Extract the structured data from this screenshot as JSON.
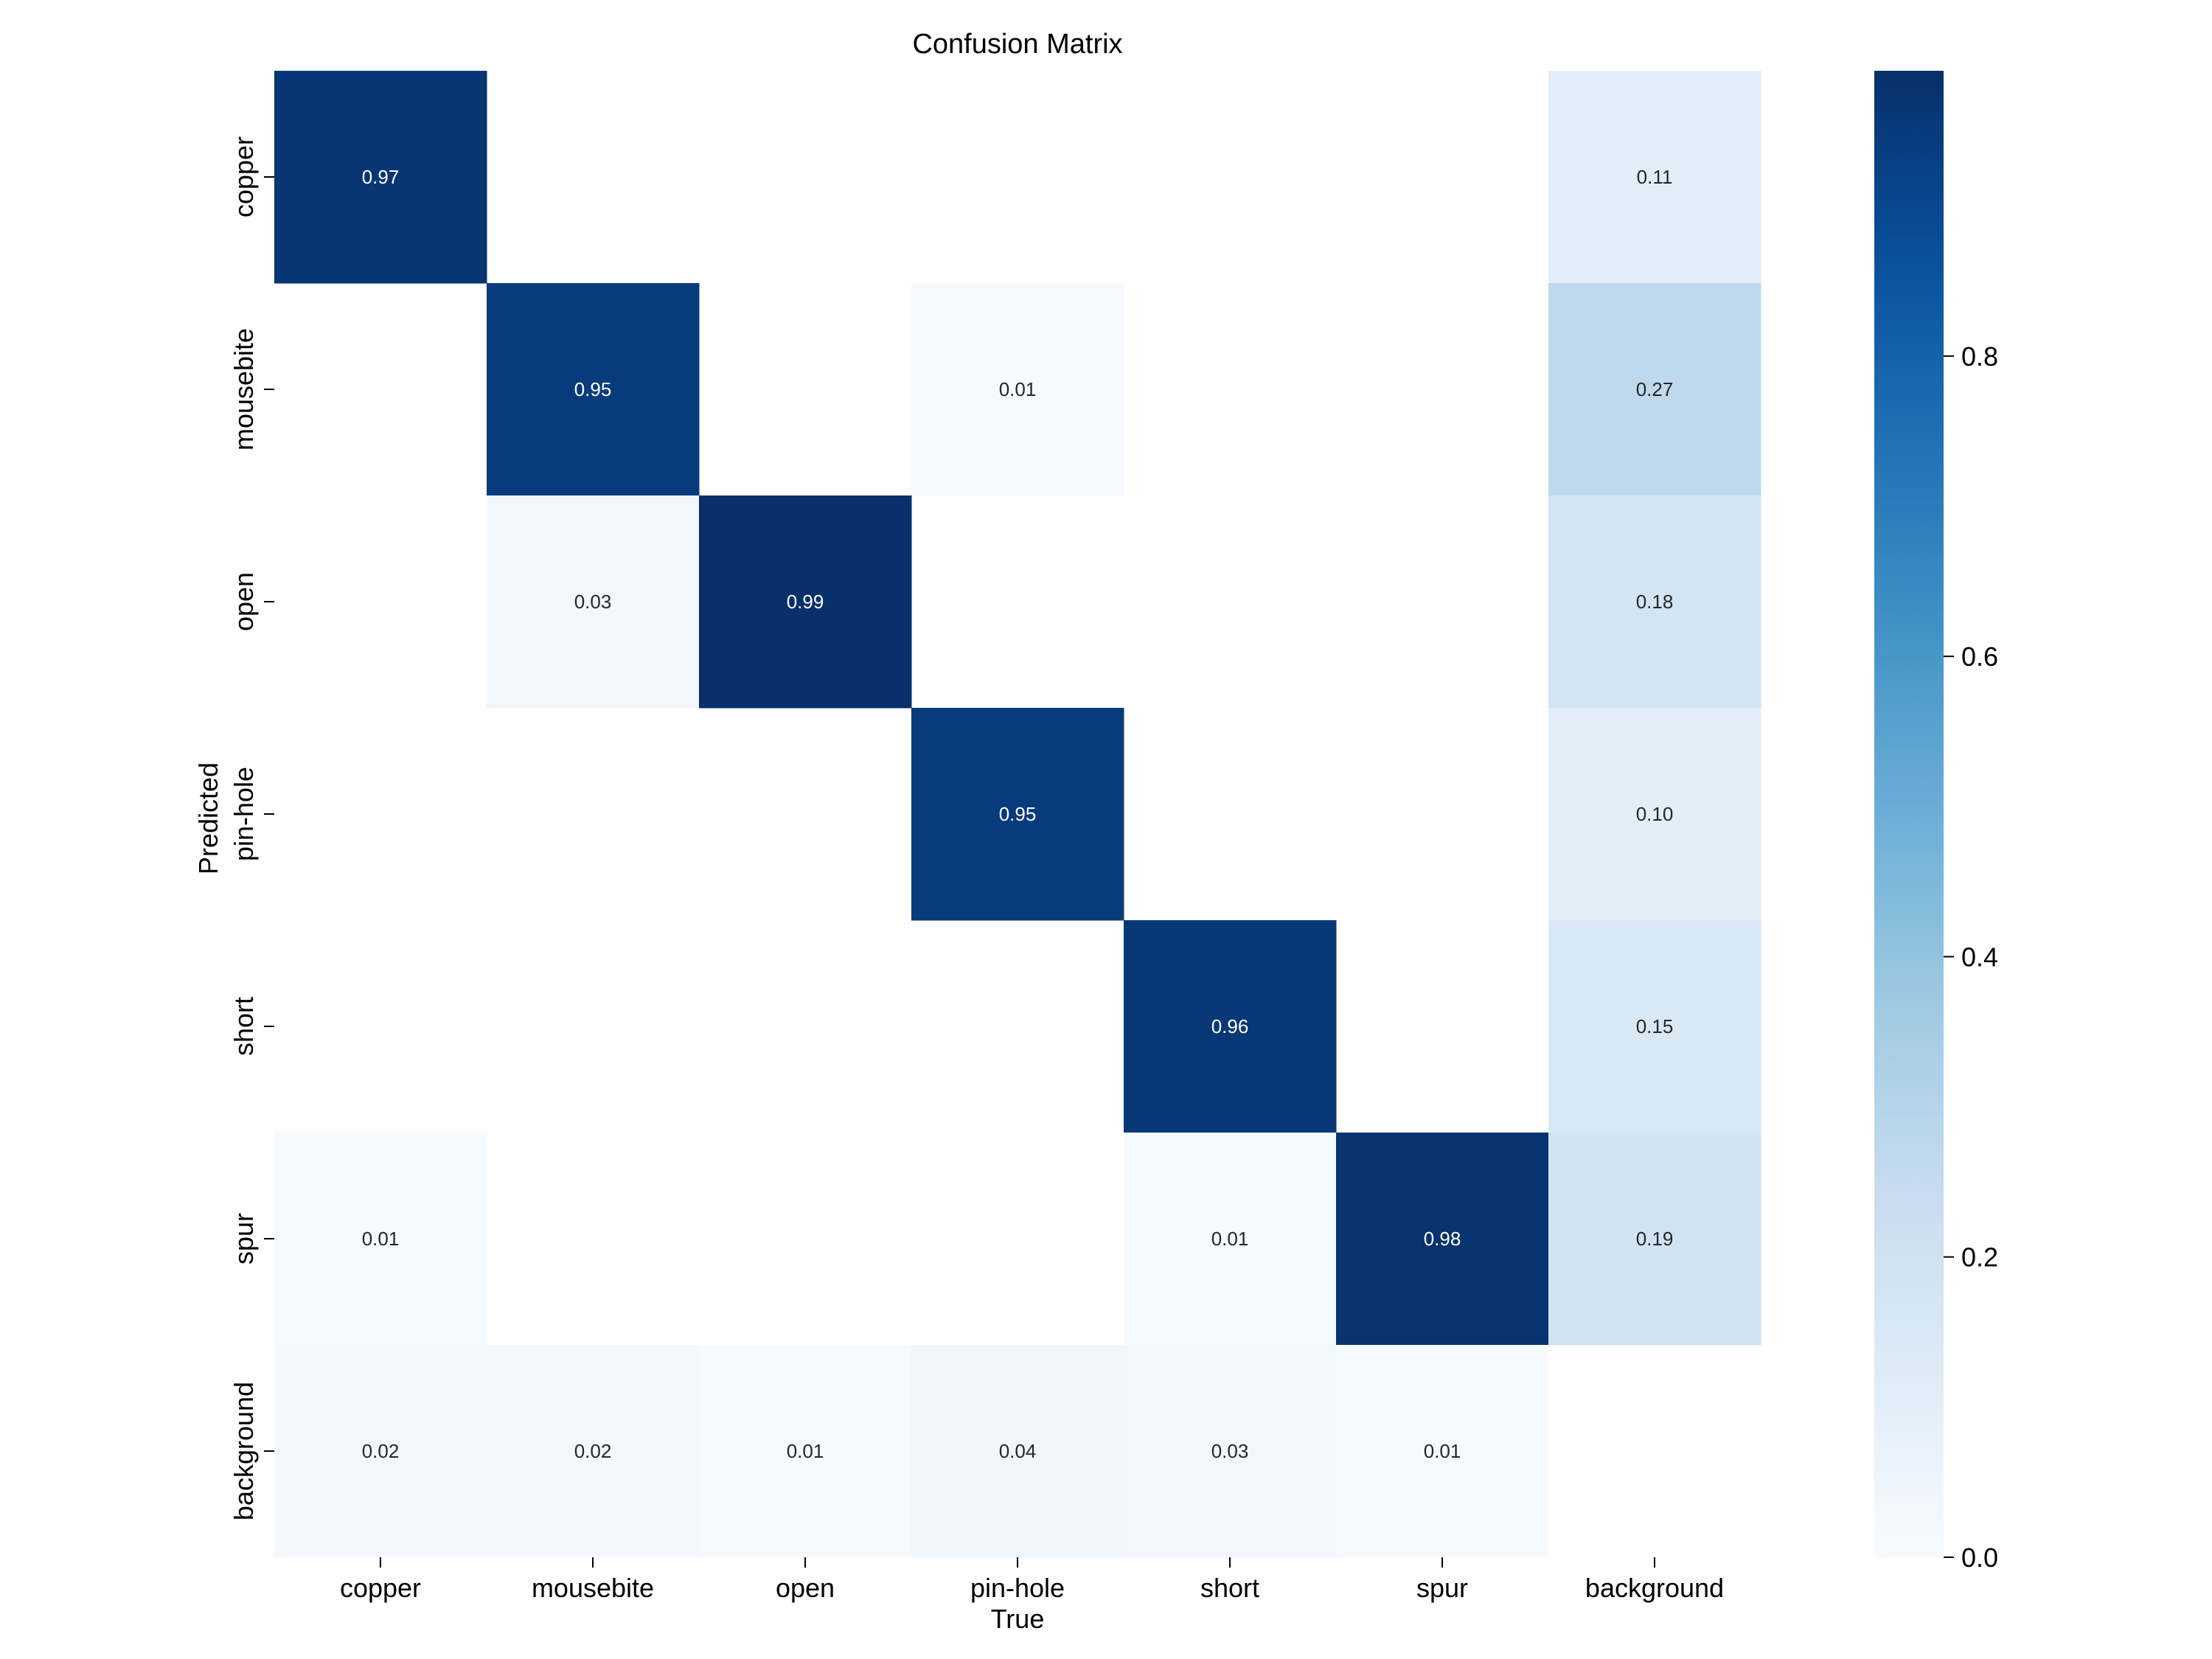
{
  "chart_data": {
    "type": "heatmap",
    "title": "Confusion Matrix",
    "xlabel": "True",
    "ylabel": "Predicted",
    "x_categories": [
      "copper",
      "mousebite",
      "open",
      "pin-hole",
      "short",
      "spur",
      "background"
    ],
    "y_categories": [
      "copper",
      "mousebite",
      "open",
      "pin-hole",
      "short",
      "spur",
      "background"
    ],
    "values": [
      [
        0.97,
        null,
        null,
        null,
        null,
        null,
        0.11
      ],
      [
        null,
        0.95,
        null,
        0.01,
        null,
        null,
        0.27
      ],
      [
        null,
        0.03,
        0.99,
        null,
        null,
        null,
        0.18
      ],
      [
        null,
        null,
        null,
        0.95,
        null,
        null,
        0.1
      ],
      [
        null,
        null,
        null,
        null,
        0.96,
        null,
        0.15
      ],
      [
        0.01,
        null,
        null,
        null,
        0.01,
        0.98,
        0.19
      ],
      [
        0.02,
        0.02,
        0.01,
        0.04,
        0.03,
        0.01,
        null
      ]
    ],
    "value_labels": [
      [
        "0.97",
        "",
        "",
        "",
        "",
        "",
        "0.11"
      ],
      [
        "",
        "0.95",
        "",
        "0.01",
        "",
        "",
        "0.27"
      ],
      [
        "",
        "0.03",
        "0.99",
        "",
        "",
        "",
        "0.18"
      ],
      [
        "",
        "",
        "",
        "0.95",
        "",
        "",
        "0.10"
      ],
      [
        "",
        "",
        "",
        "",
        "0.96",
        "",
        "0.15"
      ],
      [
        "0.01",
        "",
        "",
        "",
        "0.01",
        "0.98",
        "0.19"
      ],
      [
        "0.02",
        "0.02",
        "0.01",
        "0.04",
        "0.03",
        "0.01",
        ""
      ]
    ],
    "colormap": "Blues",
    "colorbar": {
      "range": [
        0,
        0.99
      ],
      "ticks": [
        0.0,
        0.2,
        0.4,
        0.6,
        0.8
      ],
      "tick_labels": [
        "0.0",
        "0.2",
        "0.4",
        "0.6",
        "0.8"
      ]
    },
    "grid": false
  }
}
